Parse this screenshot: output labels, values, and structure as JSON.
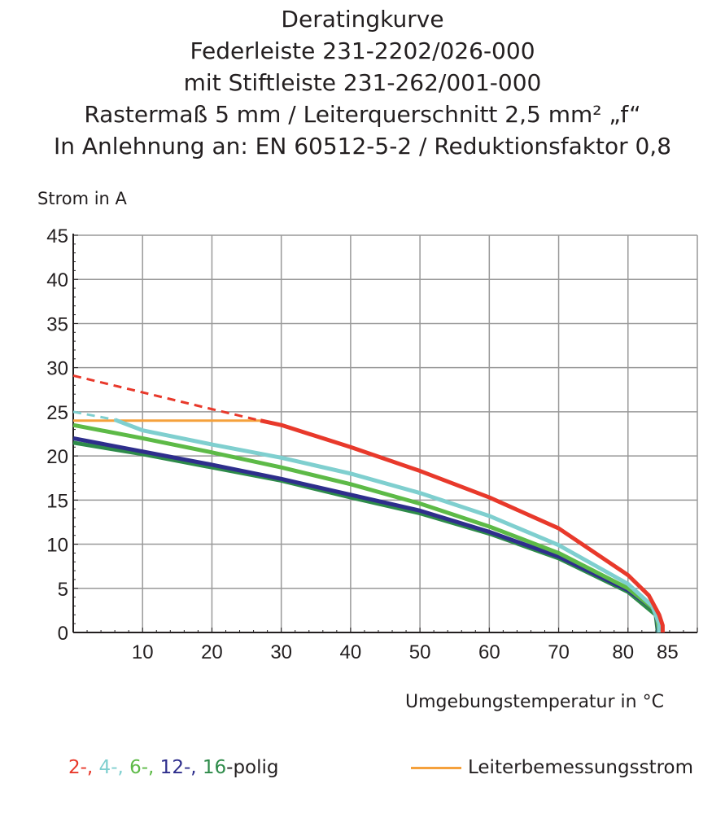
{
  "chart_data": {
    "type": "line",
    "title": [
      "Deratingkurve",
      "Federleiste 231-2202/026-000",
      "mit Stiftleiste 231-262/001-000",
      "Rastermaß 5 mm / Leiterquerschnitt 2,5 mm² „f“",
      "In Anlehnung an: EN 60512-5-2 / Reduktionsfaktor 0,8"
    ],
    "xlabel": "Umgebungstemperatur in °C",
    "ylabel": "Strom in A",
    "xlim": [
      0,
      90
    ],
    "ylim": [
      0,
      45
    ],
    "xticks": [
      10,
      20,
      30,
      40,
      50,
      60,
      70,
      80,
      85
    ],
    "yticks": [
      0,
      5,
      10,
      15,
      20,
      25,
      30,
      35,
      40,
      45
    ],
    "grid": true,
    "series": [
      {
        "color": "#e8392b",
        "dashed": [
          [
            0,
            29.1
          ],
          [
            10,
            27.2
          ],
          [
            20,
            25.3
          ],
          [
            27,
            24
          ]
        ],
        "x": [
          27,
          30,
          40,
          50,
          60,
          70,
          80,
          83,
          84.5,
          85,
          85
        ],
        "y": [
          24,
          23.5,
          21,
          18.3,
          15.3,
          11.8,
          6.5,
          4.2,
          2,
          0.8,
          0
        ]
      },
      {
        "color": "#7fcfcf",
        "dashed": [
          [
            0,
            25
          ],
          [
            6,
            24.1
          ]
        ],
        "x": [
          6,
          10,
          20,
          30,
          40,
          50,
          60,
          70,
          80,
          83.5,
          84.5,
          84.5
        ],
        "y": [
          24.1,
          22.9,
          21.3,
          19.8,
          18,
          15.8,
          13.2,
          9.9,
          5.5,
          3,
          1,
          0
        ]
      },
      {
        "color": "#5dba47",
        "x": [
          0,
          10,
          20,
          30,
          40,
          50,
          60,
          70,
          80,
          84,
          84.5
        ],
        "y": [
          23.5,
          22,
          20.4,
          18.7,
          16.8,
          14.6,
          12,
          9,
          5,
          2.5,
          0
        ]
      },
      {
        "color": "#2e2e8c",
        "x": [
          0,
          10,
          20,
          30,
          40,
          50,
          60,
          70,
          80,
          84,
          84.4
        ],
        "y": [
          22,
          20.5,
          19,
          17.4,
          15.6,
          13.8,
          11.4,
          8.6,
          4.8,
          2.5,
          0
        ]
      },
      {
        "color": "#2e8b4a",
        "x": [
          0,
          10,
          20,
          30,
          40,
          50,
          60,
          70,
          80,
          84,
          84.3
        ],
        "y": [
          21.5,
          20.2,
          18.7,
          17.2,
          15.3,
          13.5,
          11.2,
          8.4,
          4.6,
          2,
          0
        ]
      }
    ],
    "rated_current": {
      "color": "#f5a13c",
      "x": [
        0,
        27
      ],
      "y": [
        24,
        24
      ]
    },
    "legend": {
      "poles": [
        {
          "text": "2-,",
          "color": "#e8392b"
        },
        {
          "text": " 4-,",
          "color": "#7fcfcf"
        },
        {
          "text": " 6-,",
          "color": "#5dba47"
        },
        {
          "text": " 12-,",
          "color": "#2e2e8c"
        },
        {
          "text": " 16",
          "color": "#2e8b4a"
        },
        {
          "text": "-polig",
          "color": "#231f20"
        }
      ],
      "rated_label": "Leiterbemessungsstrom"
    }
  }
}
